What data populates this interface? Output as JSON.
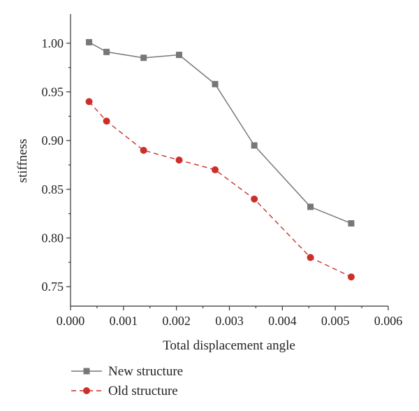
{
  "chart_data": {
    "type": "line",
    "xlabel": "Total displacement angle",
    "ylabel": "stiffness",
    "xlim": [
      0.0,
      0.006
    ],
    "ylim": [
      0.73,
      1.03
    ],
    "x_ticks": [
      "0.000",
      "0.001",
      "0.002",
      "0.003",
      "0.004",
      "0.005",
      "0.006"
    ],
    "y_ticks": [
      "0.75",
      "0.80",
      "0.85",
      "0.90",
      "0.95",
      "1.00"
    ],
    "grid": false,
    "legend_position": "bottom-left",
    "series": [
      {
        "name": "New structure",
        "color": "#777777",
        "marker": "square",
        "line_style": "solid",
        "x": [
          0.00035,
          0.00068,
          0.00138,
          0.00205,
          0.00273,
          0.00347,
          0.00453,
          0.0053
        ],
        "y": [
          1.001,
          0.991,
          0.985,
          0.988,
          0.958,
          0.895,
          0.832,
          0.815
        ]
      },
      {
        "name": "Old structure",
        "color": "#cc2f2a",
        "marker": "circle",
        "line_style": "dashed",
        "x": [
          0.00035,
          0.00068,
          0.00138,
          0.00205,
          0.00273,
          0.00347,
          0.00453,
          0.0053
        ],
        "y": [
          0.94,
          0.92,
          0.89,
          0.88,
          0.87,
          0.84,
          0.78,
          0.76
        ]
      }
    ]
  }
}
